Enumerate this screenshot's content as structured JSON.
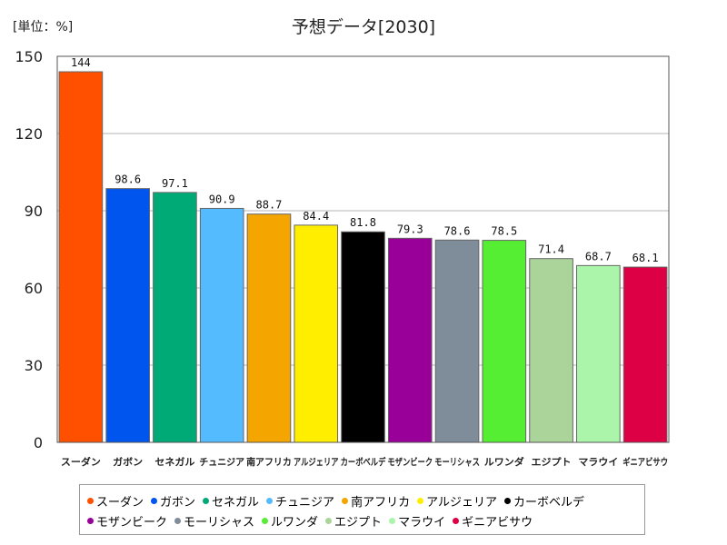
{
  "chart_data": {
    "type": "bar",
    "title": "予想データ[2030]",
    "unit_label": "[単位：%]",
    "ylim": [
      0,
      150
    ],
    "yticks": [
      "0",
      "30",
      "60",
      "90",
      "120",
      "150"
    ],
    "grid": true,
    "legend_position": "bottom",
    "categories": [
      "スーダン",
      "ガボン",
      "セネガル",
      "チュニジア",
      "南アフリカ",
      "アルジェリア",
      "カーボベルデ",
      "モザンビーク",
      "モーリシャス",
      "ルワンダ",
      "エジプト",
      "マラウイ",
      "ギニアビサウ"
    ],
    "values": [
      144,
      98.6,
      97.1,
      90.9,
      88.7,
      84.4,
      81.8,
      79.3,
      78.6,
      78.5,
      71.4,
      68.7,
      68.1
    ],
    "value_labels": [
      "144",
      "98.6",
      "97.1",
      "90.9",
      "88.7",
      "84.4",
      "81.8",
      "79.3",
      "78.6",
      "78.5",
      "71.4",
      "68.7",
      "68.1"
    ],
    "colors": [
      "#ff5000",
      "#0055ee",
      "#00aa77",
      "#55bbff",
      "#f5a500",
      "#ffee00",
      "#000000",
      "#990099",
      "#7f8c99",
      "#55ee33",
      "#aad499",
      "#aaf5aa",
      "#dd0044"
    ]
  }
}
